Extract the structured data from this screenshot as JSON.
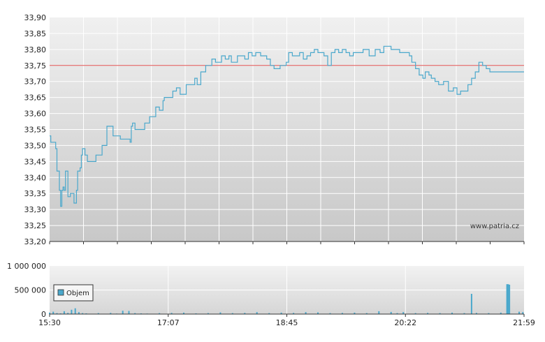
{
  "watermark": "www.patria.cz",
  "colors": {
    "price_line": "#4aa8cc",
    "reference_line": "#e05050",
    "volume_bar": "#4aa8cc",
    "grid": "#ffffff",
    "plot_top": "#f0f0f0",
    "plot_bottom": "#c8c8c8"
  },
  "chart_data": [
    {
      "type": "line",
      "name": "price",
      "xlim": [
        "15:30",
        "21:59"
      ],
      "ylim": [
        33.2,
        33.9
      ],
      "yticks": [
        "33,20",
        "33,25",
        "33,30",
        "33,35",
        "33,40",
        "33,45",
        "33,50",
        "33,55",
        "33,60",
        "33,65",
        "33,70",
        "33,75",
        "33,80",
        "33,85",
        "33,90"
      ],
      "reference_value": 33.75,
      "grid": true,
      "series": [
        {
          "x": [
            "15:30",
            "15:31",
            "15:33",
            "15:35",
            "15:36",
            "15:38",
            "15:39",
            "15:40",
            "15:41",
            "15:42",
            "15:43",
            "15:45",
            "15:46",
            "15:47",
            "15:49",
            "15:50",
            "15:51",
            "15:52",
            "15:53",
            "15:55",
            "15:56",
            "15:57",
            "15:58",
            "15:59",
            "16:01",
            "16:05",
            "16:08",
            "16:13",
            "16:17",
            "16:20",
            "16:22",
            "16:28",
            "16:36",
            "16:37",
            "16:38",
            "16:40",
            "16:45",
            "16:48",
            "16:52",
            "16:57",
            "17:00",
            "17:03",
            "17:04",
            "17:10",
            "17:11",
            "17:14",
            "17:17",
            "17:20",
            "17:22",
            "17:29",
            "17:31",
            "17:34",
            "17:38",
            "17:43",
            "17:46",
            "17:51",
            "17:54",
            "17:57",
            "17:59",
            "18:01",
            "18:04",
            "18:07",
            "18:10",
            "18:13",
            "18:16",
            "18:19",
            "18:23",
            "18:28",
            "18:31",
            "18:34",
            "18:36",
            "18:39",
            "18:43",
            "18:44",
            "18:46",
            "18:49",
            "18:52",
            "18:55",
            "18:58",
            "19:01",
            "19:04",
            "19:07",
            "19:10",
            "19:13",
            "19:15",
            "19:18",
            "19:21",
            "19:24",
            "19:27",
            "19:30",
            "19:33",
            "19:36",
            "19:39",
            "19:42",
            "19:47",
            "19:52",
            "19:57",
            "20:01",
            "20:04",
            "20:10",
            "20:14",
            "20:17",
            "20:22",
            "20:25",
            "20:27",
            "20:30",
            "20:33",
            "20:36",
            "20:38",
            "20:41",
            "20:43",
            "20:46",
            "20:49",
            "20:53",
            "20:57",
            "21:01",
            "21:04",
            "21:07",
            "21:10",
            "21:13",
            "21:16",
            "21:19",
            "21:22",
            "21:25",
            "21:28",
            "21:31",
            "21:34",
            "21:37",
            "21:40",
            "21:43",
            "21:46",
            "21:49",
            "21:51",
            "21:53",
            "21:55",
            "21:57",
            "21:59"
          ],
          "y": [
            33.53,
            33.51,
            33.51,
            33.49,
            33.42,
            33.36,
            33.31,
            33.36,
            33.37,
            33.36,
            33.42,
            33.34,
            33.34,
            33.35,
            33.35,
            33.32,
            33.32,
            33.36,
            33.42,
            33.43,
            33.47,
            33.49,
            33.49,
            33.47,
            33.45,
            33.45,
            33.47,
            33.5,
            33.56,
            33.56,
            33.53,
            33.52,
            33.51,
            33.56,
            33.57,
            33.55,
            33.55,
            33.57,
            33.59,
            33.62,
            33.61,
            33.64,
            33.65,
            33.65,
            33.67,
            33.68,
            33.66,
            33.66,
            33.69,
            33.71,
            33.69,
            33.73,
            33.75,
            33.77,
            33.76,
            33.78,
            33.77,
            33.78,
            33.76,
            33.76,
            33.78,
            33.78,
            33.77,
            33.79,
            33.78,
            33.79,
            33.78,
            33.77,
            33.75,
            33.74,
            33.74,
            33.75,
            33.75,
            33.76,
            33.79,
            33.78,
            33.78,
            33.79,
            33.77,
            33.78,
            33.79,
            33.8,
            33.79,
            33.79,
            33.78,
            33.75,
            33.79,
            33.8,
            33.79,
            33.8,
            33.79,
            33.78,
            33.79,
            33.79,
            33.8,
            33.78,
            33.8,
            33.79,
            33.81,
            33.8,
            33.8,
            33.79,
            33.79,
            33.78,
            33.76,
            33.74,
            33.72,
            33.71,
            33.73,
            33.72,
            33.71,
            33.7,
            33.69,
            33.7,
            33.67,
            33.68,
            33.66,
            33.67,
            33.67,
            33.69,
            33.71,
            33.73,
            33.76,
            33.75,
            33.74,
            33.73,
            33.73,
            33.73,
            33.73,
            33.73,
            33.73,
            33.73,
            33.73,
            33.73,
            33.73,
            33.73,
            33.73
          ]
        }
      ]
    },
    {
      "type": "bar",
      "name": "volume",
      "legend": "Objem",
      "legend_position": "top-left",
      "xlim": [
        "15:30",
        "21:59"
      ],
      "xticks": [
        "15:30",
        "17:07",
        "18:45",
        "20:22",
        "21:59"
      ],
      "ylim": [
        0,
        1000000
      ],
      "yticks": [
        "0",
        "500 000",
        "1 000 000"
      ],
      "grid": true,
      "series": [
        {
          "x": [
            "15:30",
            "15:33",
            "15:36",
            "15:39",
            "15:42",
            "15:45",
            "15:48",
            "15:51",
            "15:54",
            "15:57",
            "16:00",
            "16:10",
            "16:20",
            "16:25",
            "16:30",
            "16:35",
            "16:40",
            "16:45",
            "16:50",
            "17:00",
            "17:10",
            "17:20",
            "17:30",
            "17:40",
            "17:50",
            "18:00",
            "18:10",
            "18:20",
            "18:30",
            "18:40",
            "18:50",
            "19:00",
            "19:10",
            "19:20",
            "19:30",
            "19:40",
            "19:50",
            "20:00",
            "20:10",
            "20:15",
            "20:20",
            "20:30",
            "20:40",
            "20:50",
            "21:00",
            "21:10",
            "21:16",
            "21:20",
            "21:30",
            "21:40",
            "21:45",
            "21:46",
            "21:47",
            "21:55",
            "21:58"
          ],
          "values": [
            30000,
            50000,
            20000,
            15000,
            60000,
            25000,
            90000,
            120000,
            40000,
            20000,
            15000,
            20000,
            25000,
            10000,
            70000,
            65000,
            20000,
            15000,
            10000,
            20000,
            25000,
            30000,
            15000,
            20000,
            35000,
            20000,
            25000,
            40000,
            20000,
            30000,
            25000,
            40000,
            35000,
            20000,
            25000,
            30000,
            20000,
            60000,
            45000,
            20000,
            40000,
            20000,
            25000,
            20000,
            30000,
            20000,
            420000,
            25000,
            20000,
            30000,
            620000,
            620000,
            610000,
            50000,
            40000
          ]
        }
      ]
    }
  ]
}
